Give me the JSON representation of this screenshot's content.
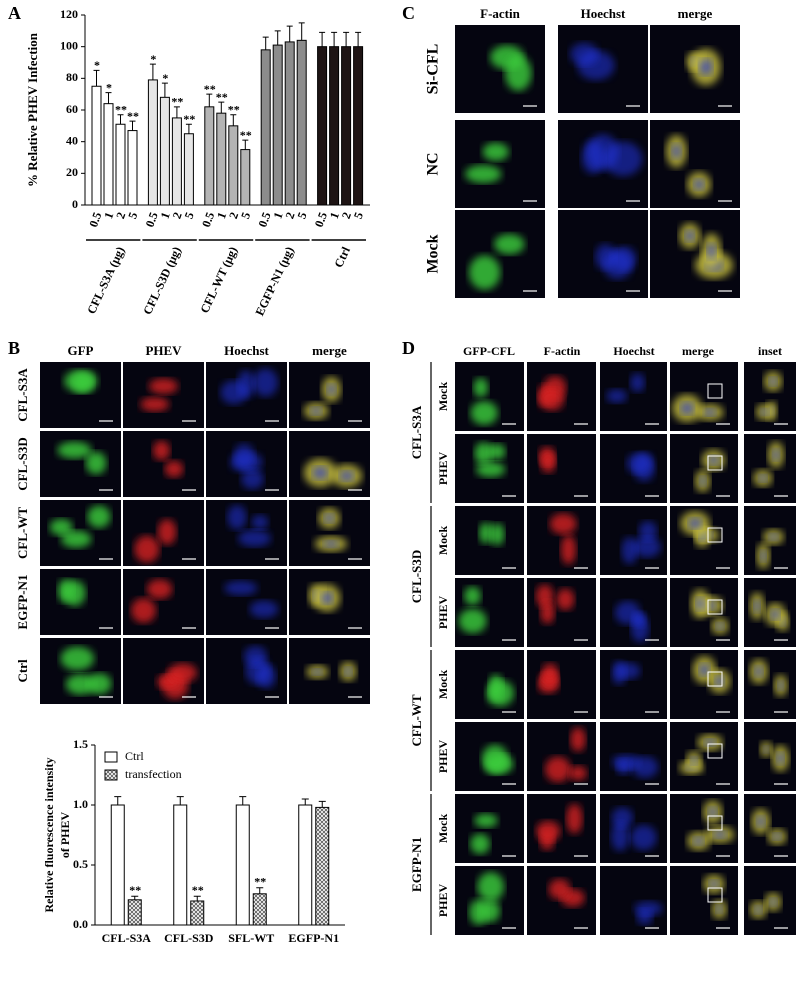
{
  "panel_labels": [
    "A",
    "B",
    "C",
    "D"
  ],
  "chart_data": [
    {
      "type": "bar",
      "ylabel": "% Relative PHEV Infection",
      "categories": [
        "0.5",
        "1",
        "2",
        "5"
      ],
      "ylim": [
        0,
        120
      ],
      "yticks": [
        0,
        20,
        40,
        60,
        80,
        100,
        120
      ],
      "series": [
        {
          "name": "CFL-S3A (μg)",
          "color": "#ffffff",
          "values": [
            75,
            64,
            51,
            47
          ],
          "errors": [
            10,
            7,
            6,
            6
          ],
          "annotations": [
            "*",
            "*",
            "**",
            "**"
          ]
        },
        {
          "name": "CFL-S3D (μg)",
          "color": "#e6e6e6",
          "values": [
            79,
            68,
            55,
            45
          ],
          "errors": [
            10,
            9,
            7,
            6
          ],
          "annotations": [
            "*",
            "*",
            "**",
            "**"
          ]
        },
        {
          "name": "CFL-WT (μg)",
          "color": "#b4b4b4",
          "values": [
            62,
            58,
            50,
            35
          ],
          "errors": [
            8,
            7,
            7,
            6
          ],
          "annotations": [
            "**",
            "**",
            "**",
            "**"
          ]
        },
        {
          "name": "EGFP-N1 (μg)",
          "color": "#8c8c8c",
          "values": [
            98,
            101,
            103,
            104
          ],
          "errors": [
            8,
            9,
            10,
            11
          ]
        },
        {
          "name": "Ctrl",
          "color": "#1e1414",
          "values": [
            100,
            100,
            100,
            100
          ],
          "errors": [
            9,
            9,
            9,
            9
          ]
        }
      ]
    },
    {
      "type": "bar",
      "ylabel": [
        "Relative fluorescence intensity",
        "of PHEV"
      ],
      "categories": [
        "CFL-S3A",
        "CFL-S3D",
        "SFL-WT",
        "EGFP-N1"
      ],
      "ylim": [
        0,
        1.5
      ],
      "yticks": [
        {
          "value": 0,
          "label": "0.0"
        },
        0.5,
        {
          "value": 1,
          "label": "1.0"
        },
        1.5
      ],
      "legend": "upper left",
      "series": [
        {
          "name": "Ctrl",
          "color": "#ffffff",
          "values": [
            1.0,
            1.0,
            1.0,
            1.0
          ],
          "errors": [
            0.07,
            0.07,
            0.07,
            0.05
          ]
        },
        {
          "name": "transfection",
          "color": "#909090",
          "hatch": true,
          "values": [
            0.21,
            0.2,
            0.26,
            0.98
          ],
          "errors": [
            0.03,
            0.04,
            0.05,
            0.05
          ],
          "annotations": [
            "**",
            "**",
            "**",
            null
          ]
        }
      ]
    }
  ],
  "panel_b": {
    "columns": [
      "GFP",
      "PHEV",
      "Hoechst",
      "merge"
    ],
    "rows": [
      "CFL-S3A",
      "CFL-S3D",
      "CFL-WT",
      "EGFP-N1",
      "Ctrl"
    ]
  },
  "panel_c": {
    "columns": [
      "F-actin",
      "Hoechst",
      "merge"
    ],
    "rows": [
      "Si-CFL",
      "NC",
      "Mock"
    ]
  },
  "panel_d": {
    "columns": [
      "GFP-CFL",
      "F-actin",
      "Hoechst",
      "merge",
      "inset"
    ],
    "groups": [
      {
        "label": "CFL-S3A",
        "rows": [
          "Mock",
          "PHEV"
        ]
      },
      {
        "label": "CFL-S3D",
        "rows": [
          "Mock",
          "PHEV"
        ]
      },
      {
        "label": "CFL-WT",
        "rows": [
          "Mock",
          "PHEV"
        ]
      },
      {
        "label": "EGFP-N1",
        "rows": [
          "Mock",
          "PHEV"
        ]
      }
    ]
  }
}
